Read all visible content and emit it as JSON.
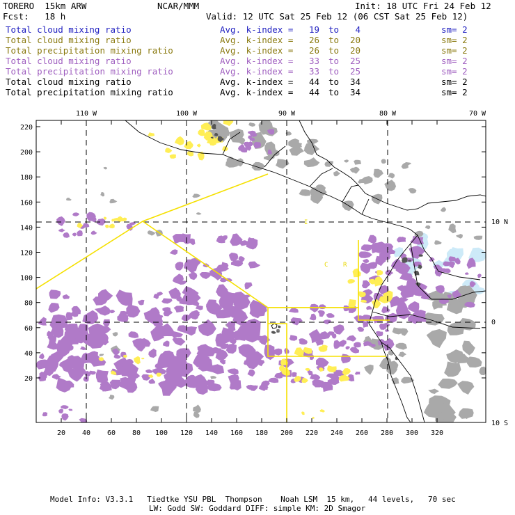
{
  "header": {
    "model": "TORERO  15km ARW",
    "center": "NCAR/MMM",
    "init": "Init: 18 UTC Fri 24 Feb 12",
    "fcst": "Fcst:   18 h",
    "valid": "Valid: 12 UTC Sat 25 Feb 12 (06 CST Sat 25 Feb 12)"
  },
  "legend": [
    {
      "field": "Total cloud mixing ratio",
      "avg": "Avg. k-index =",
      "from": "19",
      "to_word": "to",
      "to": " 4",
      "sm": "sm= 2",
      "color": "#2020c0"
    },
    {
      "field": "Total cloud mixing ratio",
      "avg": "Avg. k-index =",
      "from": "26",
      "to_word": "to",
      "to": "20",
      "sm": "sm= 2",
      "color": "#8a7a10"
    },
    {
      "field": "Total precipitation mixing ratio",
      "avg": "Avg. k-index =",
      "from": "26",
      "to_word": "to",
      "to": "20",
      "sm": "sm= 2",
      "color": "#8a7a10"
    },
    {
      "field": "Total cloud mixing ratio",
      "avg": "Avg. k-index =",
      "from": "33",
      "to_word": "to",
      "to": "25",
      "sm": "sm= 2",
      "color": "#a060c0"
    },
    {
      "field": "Total precipitation mixing ratio",
      "avg": "Avg. k-index =",
      "from": "33",
      "to_word": "to",
      "to": "25",
      "sm": "sm= 2",
      "color": "#a060c0"
    },
    {
      "field": "Total cloud mixing ratio",
      "avg": "Avg. k-index =",
      "from": "44",
      "to_word": "to",
      "to": "34",
      "sm": "sm= 2",
      "color": "#000000"
    },
    {
      "field": "Total precipitation mixing ratio",
      "avg": "Avg. k-index =",
      "from": "44",
      "to_word": "to",
      "to": "34",
      "sm": "sm= 2",
      "color": "#000000"
    }
  ],
  "map": {
    "lon_labels": [
      "110 W",
      "100 W",
      "90 W",
      "80 W",
      "70 W"
    ],
    "lat_labels": [
      "10 N",
      "0",
      "10 S"
    ],
    "x_ticks": [
      "20",
      "40",
      "60",
      "80",
      "100",
      "120",
      "140",
      "160",
      "180",
      "200",
      "220",
      "240",
      "260",
      "280",
      "300",
      "320"
    ],
    "y_ticks": [
      "220",
      "200",
      "180",
      "160",
      "140",
      "120",
      "100",
      "80",
      "60",
      "40",
      "20"
    ],
    "annotations": [
      "C",
      "R",
      "I"
    ],
    "colors": {
      "purple": "#b07ac8",
      "gray": "#a9a9a9",
      "dark_gray": "#555555",
      "yellow": "#ffee55",
      "light_blue": "#cdeaf8",
      "box_line": "#f5e000"
    }
  },
  "footer": {
    "line1": "Model Info: V3.3.1   Tiedtke YSU PBL  Thompson    Noah LSM  15 km,   44 levels,   70 sec",
    "line2": "LW: Godd SW: Goddard DIFF: simple KM: 2D Smagor"
  }
}
